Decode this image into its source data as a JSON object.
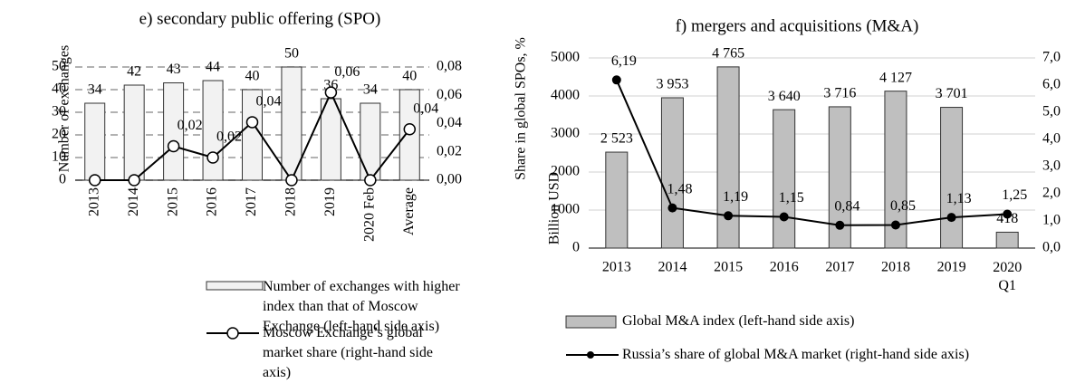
{
  "chart_data": [
    {
      "type": "bar",
      "title": "e) secondary public offering (SPO)",
      "categories": [
        "2013",
        "2014",
        "2015",
        "2016",
        "2017",
        "2018",
        "2019",
        "2020 Feb",
        "Average"
      ],
      "ylabel": "Number of exchanges",
      "y2label": "Share in global SPOs, %",
      "ylim": [
        0,
        50
      ],
      "yticks": [
        0,
        10,
        20,
        30,
        40,
        50
      ],
      "y2lim": [
        0,
        0.08
      ],
      "y2ticks": [
        {
          "value": 0,
          "label": "0,00"
        },
        {
          "value": 0.02,
          "label": "0,02"
        },
        {
          "value": 0.04,
          "label": "0,04"
        },
        {
          "value": 0.06,
          "label": "0,06"
        },
        {
          "value": 0.08,
          "label": "0,08"
        }
      ],
      "grid": true,
      "series": [
        {
          "name": "Number of exchanges with higher index than that of Moscow Exchange (left-hand side axis)",
          "type": "bar",
          "color": "#f2f2f2",
          "values": [
            34,
            42,
            43,
            44,
            40,
            50,
            36,
            34,
            40
          ]
        },
        {
          "name": "Moscow Exchange’s global market share (right-hand side axis)",
          "type": "line",
          "axis": "y2",
          "color": "#000000",
          "values": [
            0,
            0,
            0.024,
            0.016,
            0.041,
            0,
            0.062,
            0,
            0.036
          ],
          "value_labels": [
            null,
            null,
            "0,02",
            "0,02",
            "0,04",
            null,
            "0,06",
            null,
            "0,04"
          ]
        }
      ]
    },
    {
      "type": "bar",
      "title": "f) mergers and acquisitions (M&A)",
      "categories": [
        "2013",
        "2014",
        "2015",
        "2016",
        "2017",
        "2018",
        "2019",
        "2020 Q1"
      ],
      "ylabel": "Billion USD",
      "ylim": [
        0,
        5000
      ],
      "yticks": [
        0,
        1000,
        2000,
        3000,
        4000,
        5000
      ],
      "y2lim": [
        0,
        7
      ],
      "y2ticks": [
        {
          "value": 0,
          "label": "0,0"
        },
        {
          "value": 1,
          "label": "1,0"
        },
        {
          "value": 2,
          "label": "2,0"
        },
        {
          "value": 3,
          "label": "3,0"
        },
        {
          "value": 4,
          "label": "4,0"
        },
        {
          "value": 5,
          "label": "5,0"
        },
        {
          "value": 6,
          "label": "6,0"
        },
        {
          "value": 7,
          "label": "7,0"
        }
      ],
      "grid": true,
      "series": [
        {
          "name": "Global M&A index (left-hand side axis)",
          "type": "bar",
          "color": "#bfbfbf",
          "values": [
            2523,
            3953,
            4765,
            3640,
            3716,
            4127,
            3701,
            418
          ],
          "value_labels": [
            "2 523",
            "3 953",
            "4 765",
            "3 640",
            "3 716",
            "4 127",
            "3 701",
            "418"
          ]
        },
        {
          "name": "Russia’s share of global M&A market (right-hand side axis)",
          "type": "line",
          "axis": "y2",
          "color": "#000000",
          "values": [
            6.19,
            1.48,
            1.19,
            1.15,
            0.84,
            0.85,
            1.13,
            1.25
          ],
          "value_labels": [
            "6,19",
            "1,48",
            "1,19",
            "1,15",
            "0,84",
            "0,85",
            "1,13",
            "1,25"
          ]
        }
      ]
    }
  ]
}
